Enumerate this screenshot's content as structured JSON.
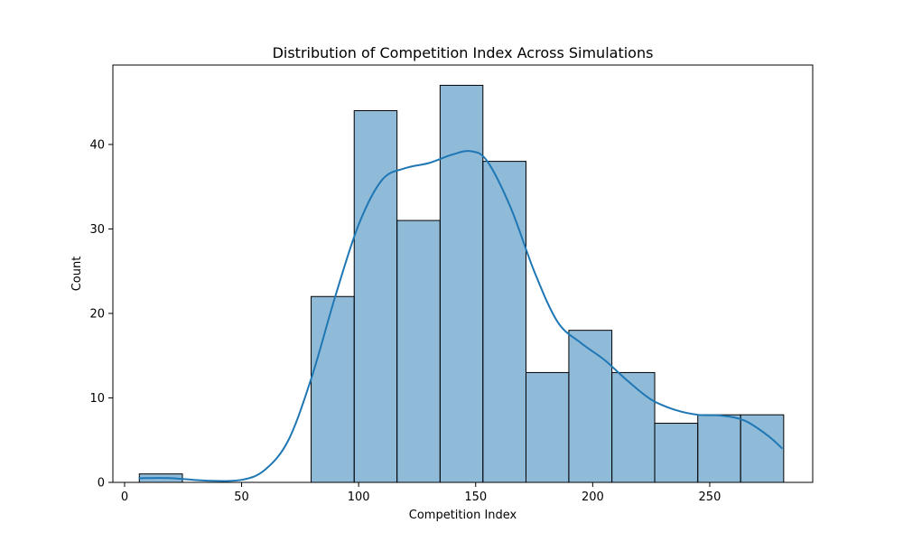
{
  "chart_data": {
    "type": "bar",
    "title": "Distribution of Competition Index Across Simulations",
    "xlabel": "Competition Index",
    "ylabel": "Count",
    "xlim": [
      -5,
      294
    ],
    "ylim": [
      0,
      49.4
    ],
    "xticks": [
      0,
      50,
      100,
      150,
      200,
      250
    ],
    "yticks": [
      0,
      10,
      20,
      30,
      40
    ],
    "grid": false,
    "bar_color": "#1f77b4",
    "bar_opacity": 0.5,
    "bar_edge_color": "#000000",
    "kde_color": "#1f77b4",
    "bins": [
      {
        "x0": 6.3,
        "x1": 24.7,
        "count": 1
      },
      {
        "x0": 24.7,
        "x1": 43.0,
        "count": 0
      },
      {
        "x0": 43.0,
        "x1": 61.4,
        "count": 0
      },
      {
        "x0": 61.4,
        "x1": 79.7,
        "count": 0
      },
      {
        "x0": 79.7,
        "x1": 98.1,
        "count": 22
      },
      {
        "x0": 98.1,
        "x1": 116.4,
        "count": 44
      },
      {
        "x0": 116.4,
        "x1": 134.8,
        "count": 31
      },
      {
        "x0": 134.8,
        "x1": 153.1,
        "count": 47
      },
      {
        "x0": 153.1,
        "x1": 171.5,
        "count": 38
      },
      {
        "x0": 171.5,
        "x1": 189.8,
        "count": 13
      },
      {
        "x0": 189.8,
        "x1": 208.2,
        "count": 18
      },
      {
        "x0": 208.2,
        "x1": 226.5,
        "count": 13
      },
      {
        "x0": 226.5,
        "x1": 244.9,
        "count": 7
      },
      {
        "x0": 244.9,
        "x1": 263.2,
        "count": 8
      },
      {
        "x0": 263.2,
        "x1": 281.6,
        "count": 8
      }
    ],
    "kde": {
      "x": [
        6,
        20,
        35,
        50,
        60,
        70,
        80,
        90,
        100,
        110,
        120,
        130,
        140,
        148,
        155,
        165,
        175,
        185,
        195,
        205,
        215,
        225,
        235,
        245,
        255,
        265,
        275,
        281
      ],
      "y": [
        0.5,
        0.5,
        0.2,
        0.3,
        1.5,
        5,
        12.5,
        22,
        30.5,
        35.8,
        37.2,
        37.8,
        38.8,
        39.2,
        38,
        32.5,
        25,
        19,
        16.5,
        14.5,
        12,
        9.8,
        8.6,
        8,
        7.9,
        7.3,
        5.5,
        4
      ]
    }
  }
}
